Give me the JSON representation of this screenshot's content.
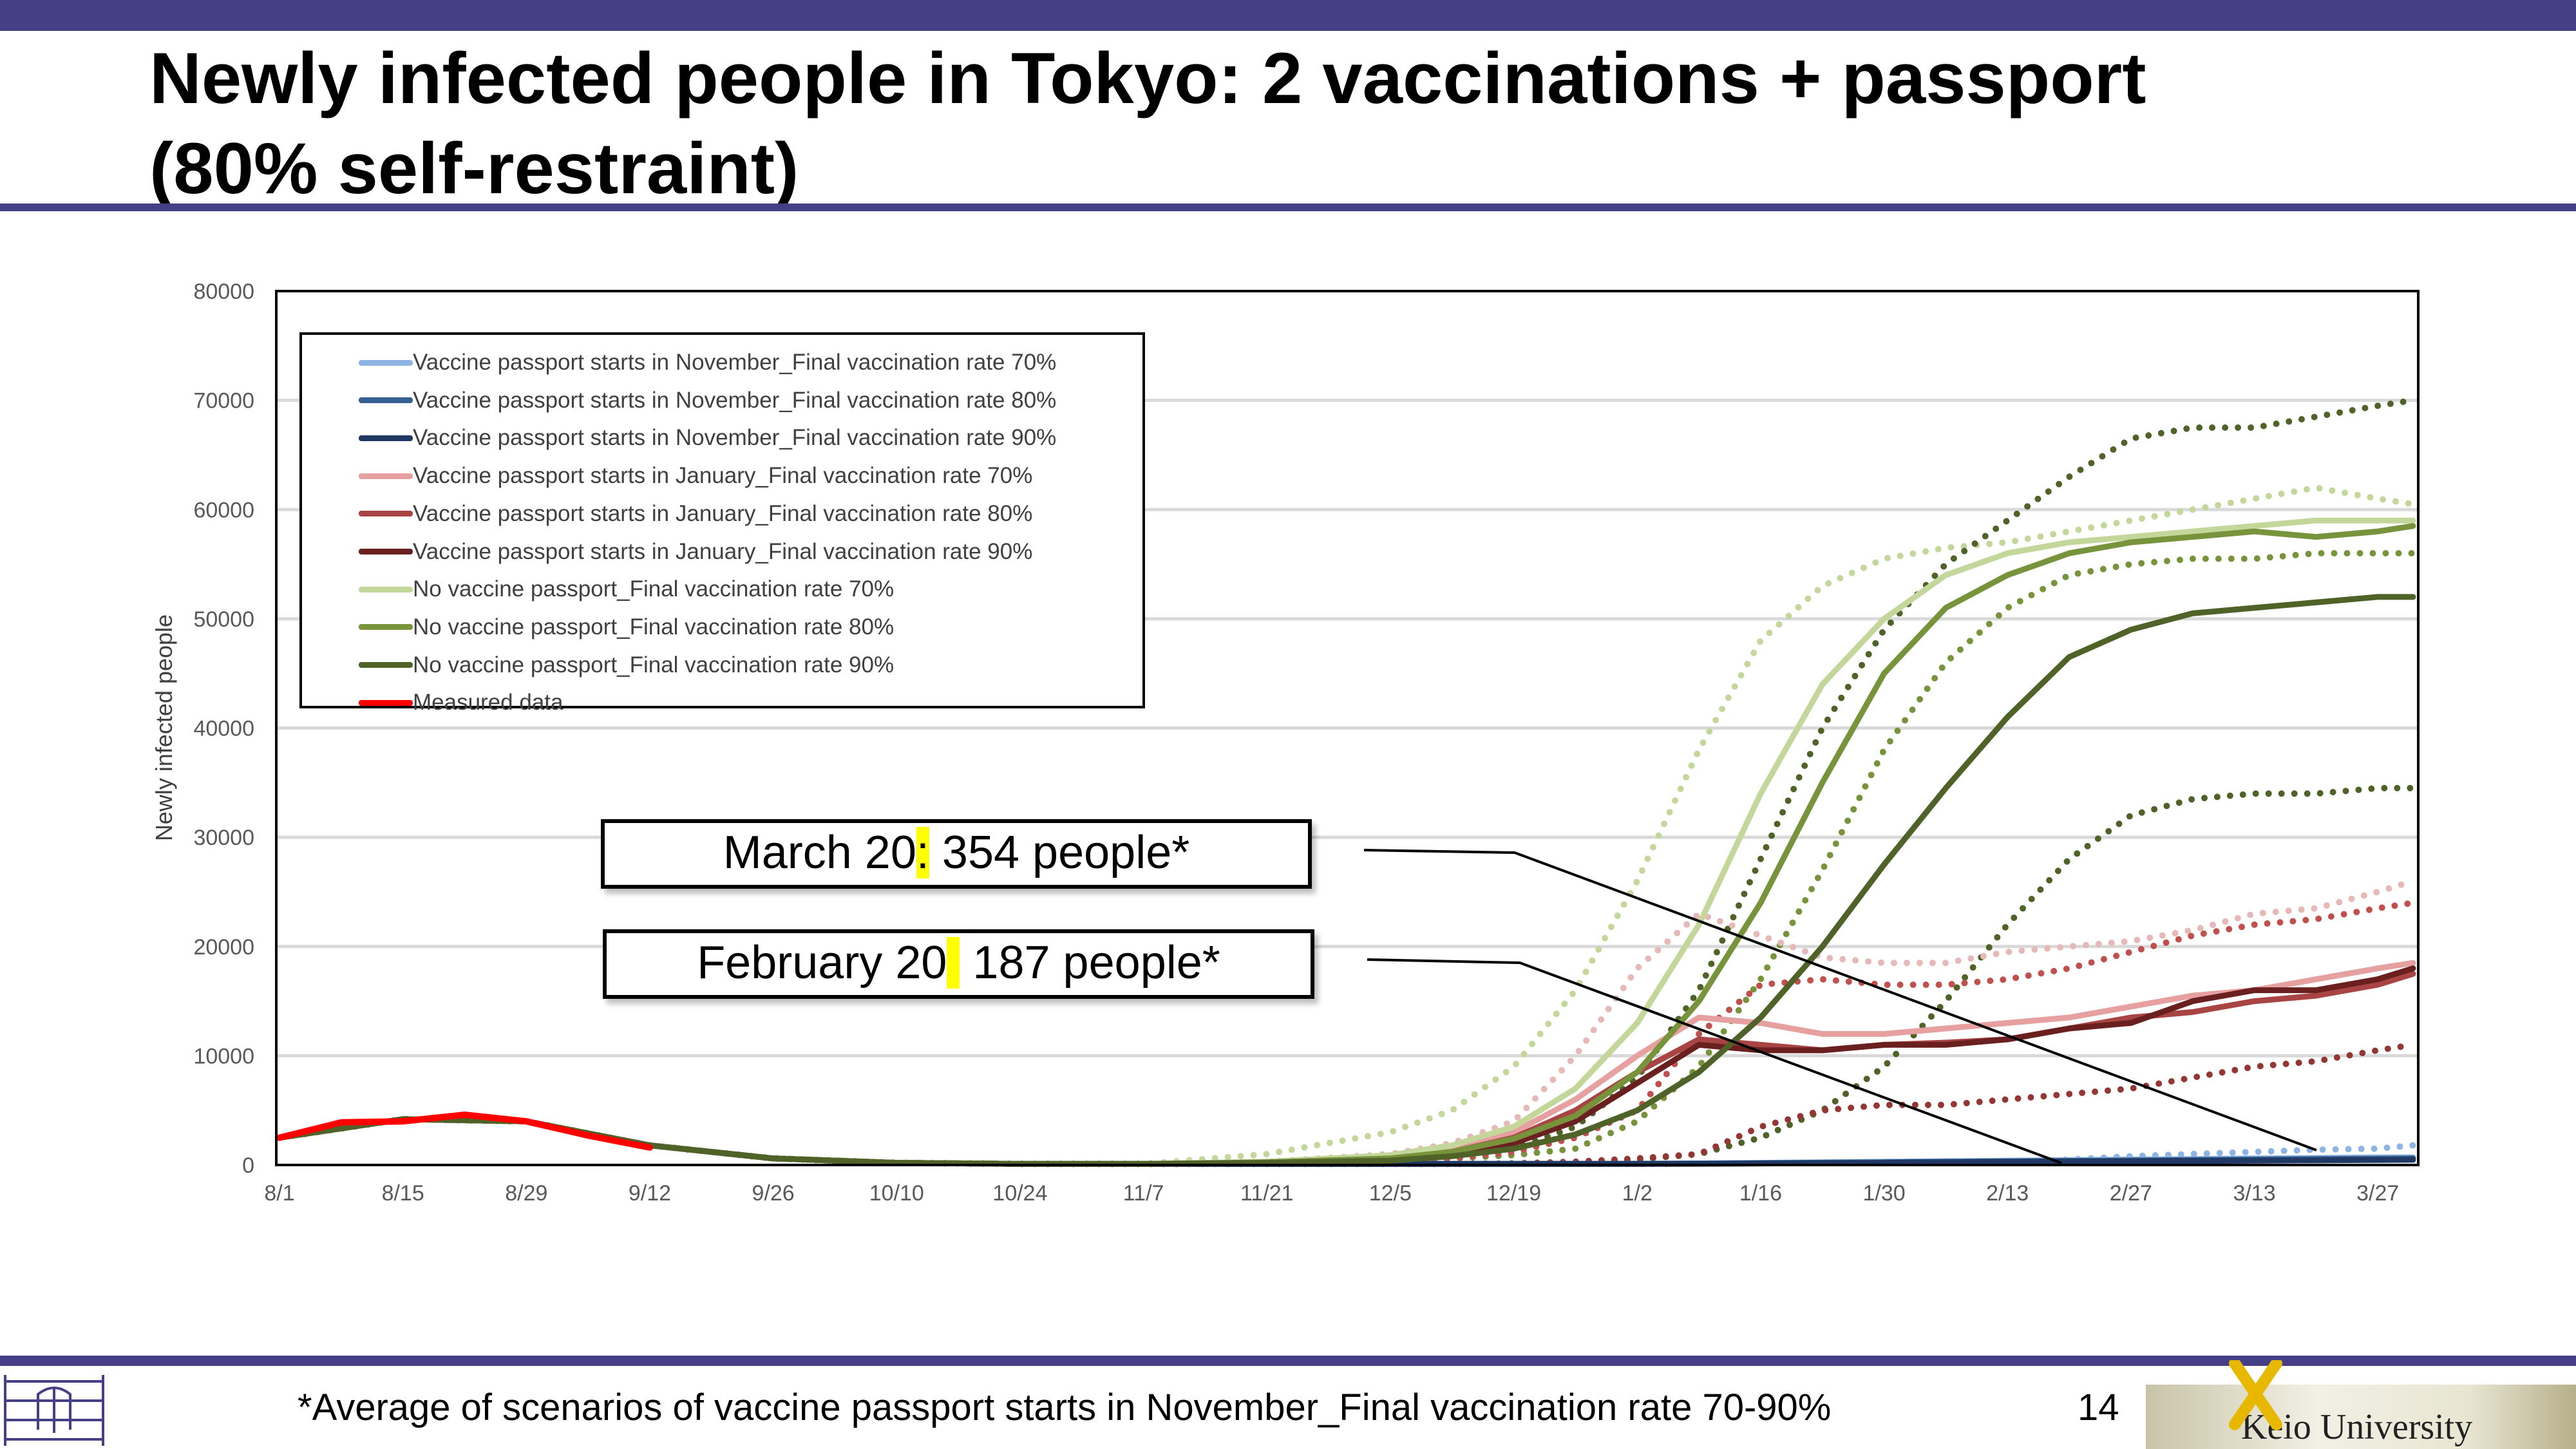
{
  "slide": {
    "title": "Newly infected people in Tokyo: 2 vaccinations + passport (80% self-restraint)",
    "footnote": "*Average of scenarios of vaccine passport starts in November_Final vaccination rate 70-90%",
    "page_number": "14",
    "logo_text": "Keio University",
    "brand_color": "#453F86"
  },
  "callouts": [
    {
      "date": "March 20",
      "sep": ":",
      "value": " 354 people*"
    },
    {
      "date": "February 20",
      "sep": " ",
      "value": " 187 people*"
    }
  ],
  "chart_data": {
    "type": "line",
    "title": "",
    "xlabel": "",
    "ylabel": "Newly infected people",
    "ylim": [
      0,
      80000
    ],
    "yticks": [
      "0",
      "10000",
      "20000",
      "30000",
      "40000",
      "50000",
      "60000",
      "70000",
      "80000"
    ],
    "xtick_labels": [
      "8/1",
      "8/15",
      "8/29",
      "9/12",
      "9/26",
      "10/10",
      "10/24",
      "11/7",
      "11/21",
      "12/5",
      "12/19",
      "1/2",
      "1/16",
      "1/30",
      "2/13",
      "2/27",
      "3/13",
      "3/27"
    ],
    "x_units": "days since 8/1",
    "xlim": [
      0,
      242
    ],
    "grid": true,
    "legend_position": "top-left",
    "x": [
      0,
      14,
      28,
      42,
      56,
      70,
      84,
      98,
      112,
      126,
      133,
      140,
      147,
      154,
      161,
      168,
      175,
      182,
      189,
      196,
      203,
      210,
      217,
      224,
      231,
      238,
      242
    ],
    "series": [
      {
        "name": "Vaccine passport starts in November_Final vaccination rate 70%",
        "color": "#8EB4E3",
        "style": "solid",
        "values": [
          2500,
          4200,
          4000,
          1800,
          600,
          200,
          100,
          100,
          100,
          100,
          100,
          100,
          100,
          120,
          150,
          200,
          250,
          300,
          350,
          400,
          450,
          500,
          550,
          600,
          650,
          700,
          700
        ]
      },
      {
        "name": "Vaccine passport starts in November_Final vaccination rate 80%",
        "color": "#376092",
        "style": "solid",
        "values": [
          2500,
          4200,
          4000,
          1800,
          600,
          200,
          100,
          100,
          100,
          100,
          100,
          100,
          100,
          110,
          130,
          170,
          210,
          250,
          300,
          340,
          380,
          420,
          460,
          500,
          540,
          580,
          600
        ]
      },
      {
        "name": "Vaccine passport starts in November_Final vaccination rate 90%",
        "color": "#1F3864",
        "style": "solid",
        "values": [
          2500,
          4200,
          4000,
          1800,
          600,
          200,
          100,
          100,
          100,
          100,
          100,
          100,
          100,
          100,
          110,
          140,
          170,
          200,
          240,
          280,
          310,
          340,
          370,
          400,
          430,
          460,
          480
        ]
      },
      {
        "name": "Vaccine passport starts in January_Final vaccination rate 70%",
        "color": "#E6A0A0",
        "style": "solid",
        "values": [
          2500,
          4200,
          4000,
          1800,
          600,
          200,
          100,
          100,
          250,
          800,
          1500,
          3000,
          6000,
          10000,
          13500,
          13000,
          12000,
          12000,
          12500,
          13000,
          13500,
          14500,
          15500,
          16000,
          17000,
          18000,
          18500
        ]
      },
      {
        "name": "Vaccine passport starts in January_Final vaccination rate 80%",
        "color": "#A94444",
        "style": "solid",
        "values": [
          2500,
          4200,
          4000,
          1800,
          600,
          200,
          100,
          100,
          200,
          600,
          1200,
          2500,
          5000,
          8500,
          11500,
          11000,
          10500,
          11000,
          11200,
          11500,
          12500,
          13500,
          14000,
          15000,
          15500,
          16500,
          17500
        ]
      },
      {
        "name": "Vaccine passport starts in January_Final vaccination rate 90%",
        "color": "#6B2020",
        "style": "solid",
        "values": [
          2500,
          4200,
          4000,
          1800,
          600,
          200,
          100,
          100,
          200,
          500,
          1000,
          2000,
          4000,
          7500,
          11000,
          10500,
          10500,
          11000,
          11000,
          11500,
          12500,
          13000,
          15000,
          16000,
          16000,
          17000,
          18000
        ]
      },
      {
        "name": "No vaccine passport_Final vaccination rate 70%",
        "color": "#C4D79B",
        "style": "solid",
        "values": [
          2500,
          4200,
          4000,
          1800,
          600,
          200,
          100,
          100,
          300,
          900,
          1800,
          3500,
          7000,
          13000,
          22000,
          34000,
          44000,
          50000,
          54000,
          56000,
          57000,
          57500,
          58000,
          58500,
          59000,
          59000,
          59000
        ]
      },
      {
        "name": "No vaccine passport_Final vaccination rate 80%",
        "color": "#77933C",
        "style": "solid",
        "values": [
          2500,
          4200,
          4000,
          1800,
          600,
          200,
          100,
          100,
          250,
          600,
          1200,
          2400,
          4500,
          8500,
          15000,
          24000,
          35000,
          45000,
          51000,
          54000,
          56000,
          57000,
          57500,
          58000,
          57500,
          58000,
          58500
        ]
      },
      {
        "name": "No vaccine passport_Final vaccination rate 90%",
        "color": "#4F6228",
        "style": "solid",
        "values": [
          2500,
          4200,
          4000,
          1800,
          600,
          200,
          100,
          100,
          200,
          400,
          800,
          1500,
          2800,
          5000,
          8500,
          13500,
          20000,
          27500,
          34500,
          41000,
          46500,
          49000,
          50500,
          51000,
          51500,
          52000,
          52000
        ]
      },
      {
        "name": "Measured data",
        "color": "#FF0000",
        "style": "solid",
        "x": [
          0,
          7,
          14,
          21,
          28,
          35,
          42
        ],
        "values": [
          2500,
          3900,
          4000,
          4600,
          4000,
          2700,
          1600
        ]
      }
    ],
    "unlabeled_dotted_series": [
      {
        "color": "#C4D79B",
        "values": [
          2500,
          4200,
          4000,
          1800,
          600,
          200,
          100,
          100,
          1000,
          3000,
          5000,
          9000,
          16000,
          26000,
          38000,
          48000,
          53000,
          55500,
          56500,
          57000,
          58000,
          59000,
          60000,
          61000,
          62000,
          61000,
          60500
        ]
      },
      {
        "color": "#4F6228",
        "values": [
          2500,
          4200,
          4000,
          1800,
          600,
          200,
          100,
          100,
          200,
          500,
          900,
          1500,
          3500,
          8000,
          16000,
          28000,
          40000,
          49000,
          55000,
          59000,
          63000,
          66500,
          67500,
          67500,
          68500,
          69500,
          70000
        ]
      },
      {
        "color": "#77933C",
        "values": [
          2500,
          4200,
          4000,
          1800,
          600,
          200,
          100,
          100,
          150,
          300,
          600,
          900,
          1500,
          4000,
          9000,
          17000,
          27000,
          38000,
          46000,
          51000,
          54000,
          55000,
          55500,
          55500,
          56000,
          56000,
          56000
        ]
      },
      {
        "color": "#4F6228",
        "values": [
          2500,
          4200,
          4000,
          1800,
          600,
          200,
          100,
          100,
          100,
          100,
          100,
          150,
          250,
          500,
          1000,
          2500,
          5000,
          9000,
          15000,
          22000,
          28000,
          32000,
          33500,
          34000,
          34000,
          34500,
          34500
        ]
      },
      {
        "color": "#E6B9B8",
        "values": [
          2500,
          4200,
          4000,
          1800,
          600,
          200,
          100,
          100,
          300,
          1000,
          2000,
          4000,
          10000,
          18000,
          23000,
          21000,
          19000,
          18500,
          18500,
          19500,
          20000,
          20500,
          21500,
          23000,
          23500,
          25000,
          26000
        ]
      },
      {
        "color": "#C0504D",
        "values": [
          2500,
          4200,
          4000,
          1800,
          600,
          200,
          100,
          100,
          150,
          300,
          600,
          1200,
          2500,
          5000,
          12000,
          16500,
          17000,
          16500,
          16500,
          17000,
          18000,
          19500,
          21000,
          22000,
          22500,
          23500,
          24000
        ]
      },
      {
        "color": "#943634",
        "values": [
          2500,
          4200,
          4000,
          1800,
          600,
          200,
          100,
          100,
          100,
          100,
          100,
          150,
          300,
          600,
          1000,
          3500,
          5000,
          5500,
          5500,
          6000,
          6500,
          7000,
          8000,
          9000,
          9500,
          10500,
          11000
        ]
      },
      {
        "color": "#8EB4E3",
        "values": [
          2500,
          4200,
          4000,
          1800,
          600,
          200,
          100,
          100,
          100,
          100,
          100,
          100,
          100,
          100,
          120,
          150,
          200,
          250,
          280,
          300,
          500,
          800,
          1000,
          1200,
          1400,
          1500,
          1800
        ]
      }
    ]
  }
}
